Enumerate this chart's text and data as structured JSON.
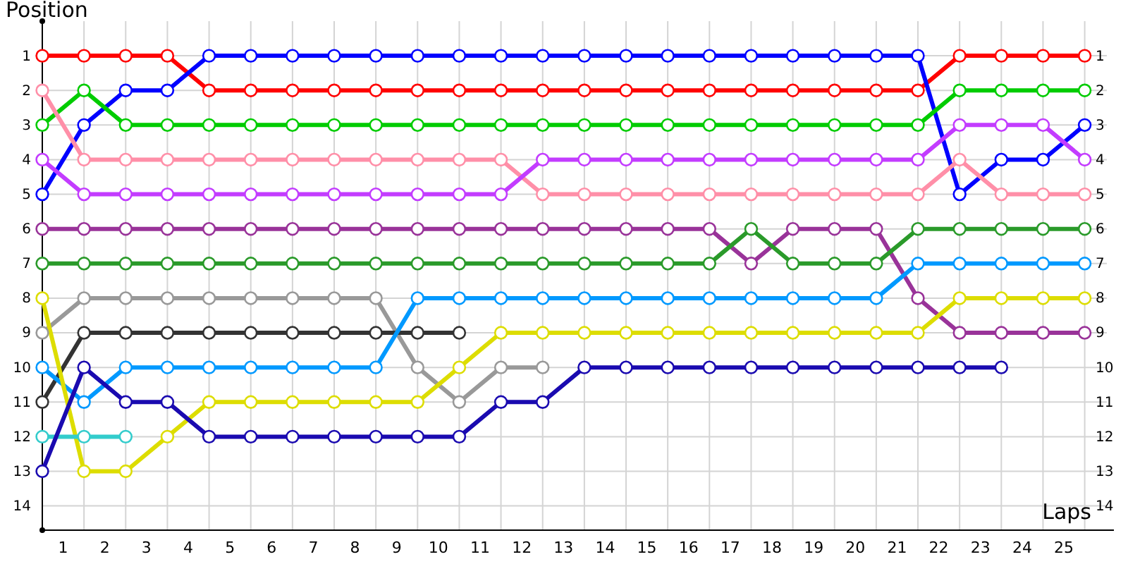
{
  "chart_data": {
    "type": "line",
    "xlabel": "Laps",
    "ylabel": "Position",
    "marker": "circle",
    "grid": true,
    "x": [
      0,
      1,
      2,
      3,
      4,
      5,
      6,
      7,
      8,
      9,
      10,
      11,
      12,
      13,
      14,
      15,
      16,
      17,
      18,
      19,
      20,
      21,
      22,
      23,
      24,
      25
    ],
    "xlim": [
      0,
      25.7
    ],
    "ylim": [
      14.7,
      0
    ],
    "y2lim": [
      14.7,
      0
    ],
    "xticks": [
      {
        "value": 0,
        "label": null
      },
      {
        "value": 0.5,
        "label": "1"
      },
      {
        "value": 1,
        "label": null
      },
      {
        "value": 1.5,
        "label": "2"
      },
      {
        "value": 2,
        "label": null
      },
      {
        "value": 2.5,
        "label": "3"
      },
      {
        "value": 3,
        "label": null
      },
      {
        "value": 3.5,
        "label": "4"
      },
      {
        "value": 4,
        "label": null
      },
      {
        "value": 4.5,
        "label": "5"
      },
      {
        "value": 5,
        "label": null
      },
      {
        "value": 5.5,
        "label": "6"
      },
      {
        "value": 6,
        "label": null
      },
      {
        "value": 6.5,
        "label": "7"
      },
      {
        "value": 7,
        "label": null
      },
      {
        "value": 7.5,
        "label": "8"
      },
      {
        "value": 8,
        "label": null
      },
      {
        "value": 8.5,
        "label": "9"
      },
      {
        "value": 9,
        "label": null
      },
      {
        "value": 9.5,
        "label": "10"
      },
      {
        "value": 10,
        "label": null
      },
      {
        "value": 10.5,
        "label": "11"
      },
      {
        "value": 11,
        "label": null
      },
      {
        "value": 11.5,
        "label": "12"
      },
      {
        "value": 12,
        "label": null
      },
      {
        "value": 12.5,
        "label": "13"
      },
      {
        "value": 13,
        "label": null
      },
      {
        "value": 13.5,
        "label": "14"
      },
      {
        "value": 14,
        "label": null
      },
      {
        "value": 14.5,
        "label": "15"
      },
      {
        "value": 15,
        "label": null
      },
      {
        "value": 15.5,
        "label": "16"
      },
      {
        "value": 16,
        "label": null
      },
      {
        "value": 16.5,
        "label": "17"
      },
      {
        "value": 17,
        "label": null
      },
      {
        "value": 17.5,
        "label": "18"
      },
      {
        "value": 18,
        "label": null
      },
      {
        "value": 18.5,
        "label": "19"
      },
      {
        "value": 19,
        "label": null
      },
      {
        "value": 19.5,
        "label": "20"
      },
      {
        "value": 20,
        "label": null
      },
      {
        "value": 20.5,
        "label": "21"
      },
      {
        "value": 21,
        "label": null
      },
      {
        "value": 21.5,
        "label": "22"
      },
      {
        "value": 22,
        "label": null
      },
      {
        "value": 22.5,
        "label": "23"
      },
      {
        "value": 23,
        "label": null
      },
      {
        "value": 23.5,
        "label": "24"
      },
      {
        "value": 24,
        "label": null
      },
      {
        "value": 24.5,
        "label": "25"
      },
      {
        "value": 25,
        "label": null
      }
    ],
    "yticks": [
      1,
      2,
      3,
      4,
      5,
      6,
      7,
      8,
      9,
      10,
      11,
      12,
      13,
      14
    ],
    "y2ticks": [
      1,
      2,
      3,
      4,
      5,
      6,
      7,
      8,
      9,
      10,
      11,
      12,
      13,
      14
    ],
    "series": [
      {
        "color": "#ff0000",
        "values": [
          1,
          1,
          1,
          1,
          2,
          2,
          2,
          2,
          2,
          2,
          2,
          2,
          2,
          2,
          2,
          2,
          2,
          2,
          2,
          2,
          2,
          2,
          1,
          1,
          1,
          1
        ]
      },
      {
        "color": "#0000ff",
        "values": [
          5,
          3,
          2,
          2,
          1,
          1,
          1,
          1,
          1,
          1,
          1,
          1,
          1,
          1,
          1,
          1,
          1,
          1,
          1,
          1,
          1,
          1,
          5,
          4,
          4,
          3
        ]
      },
      {
        "color": "#00cc00",
        "values": [
          3,
          2,
          3,
          3,
          3,
          3,
          3,
          3,
          3,
          3,
          3,
          3,
          3,
          3,
          3,
          3,
          3,
          3,
          3,
          3,
          3,
          3,
          2,
          2,
          2,
          2
        ]
      },
      {
        "color": "#ff8fa8",
        "values": [
          2,
          4,
          4,
          4,
          4,
          4,
          4,
          4,
          4,
          4,
          4,
          4,
          5,
          5,
          5,
          5,
          5,
          5,
          5,
          5,
          5,
          5,
          4,
          5,
          5,
          5
        ]
      },
      {
        "color": "#c33cff",
        "values": [
          4,
          5,
          5,
          5,
          5,
          5,
          5,
          5,
          5,
          5,
          5,
          5,
          4,
          4,
          4,
          4,
          4,
          4,
          4,
          4,
          4,
          4,
          3,
          3,
          3,
          4
        ]
      },
      {
        "color": "#993399",
        "values": [
          6,
          6,
          6,
          6,
          6,
          6,
          6,
          6,
          6,
          6,
          6,
          6,
          6,
          6,
          6,
          6,
          6,
          7,
          6,
          6,
          6,
          8,
          9,
          9,
          9,
          9
        ]
      },
      {
        "color": "#2a9a2a",
        "values": [
          7,
          7,
          7,
          7,
          7,
          7,
          7,
          7,
          7,
          7,
          7,
          7,
          7,
          7,
          7,
          7,
          7,
          6,
          7,
          7,
          7,
          6,
          6,
          6,
          6,
          6
        ]
      },
      {
        "color": "#999999",
        "values": [
          9,
          8,
          8,
          8,
          8,
          8,
          8,
          8,
          8,
          10,
          11,
          10,
          10,
          null,
          null,
          null,
          null,
          null,
          null,
          null,
          null,
          null,
          null,
          null,
          null,
          null
        ]
      },
      {
        "color": "#333333",
        "values": [
          11,
          9,
          9,
          9,
          9,
          9,
          9,
          9,
          9,
          9,
          9,
          null,
          null,
          null,
          null,
          null,
          null,
          null,
          null,
          null,
          null,
          null,
          null,
          null,
          null,
          null
        ]
      },
      {
        "color": "#0099ff",
        "values": [
          10,
          11,
          10,
          10,
          10,
          10,
          10,
          10,
          10,
          8,
          8,
          8,
          8,
          8,
          8,
          8,
          8,
          8,
          8,
          8,
          8,
          7,
          7,
          7,
          7,
          7
        ]
      },
      {
        "color": "#dddd00",
        "values": [
          8,
          13,
          13,
          12,
          11,
          11,
          11,
          11,
          11,
          11,
          10,
          9,
          9,
          9,
          9,
          9,
          9,
          9,
          9,
          9,
          9,
          9,
          8,
          8,
          8,
          8
        ]
      },
      {
        "color": "#33cccc",
        "values": [
          12,
          12,
          12,
          null,
          null,
          null,
          null,
          null,
          null,
          null,
          null,
          null,
          null,
          null,
          null,
          null,
          null,
          null,
          null,
          null,
          null,
          null,
          null,
          null,
          null,
          null
        ]
      },
      {
        "color": "#1a0ab0",
        "values": [
          13,
          10,
          11,
          11,
          12,
          12,
          12,
          12,
          12,
          12,
          12,
          11,
          11,
          10,
          10,
          10,
          10,
          10,
          10,
          10,
          10,
          10,
          10,
          10,
          null,
          null
        ]
      }
    ]
  }
}
